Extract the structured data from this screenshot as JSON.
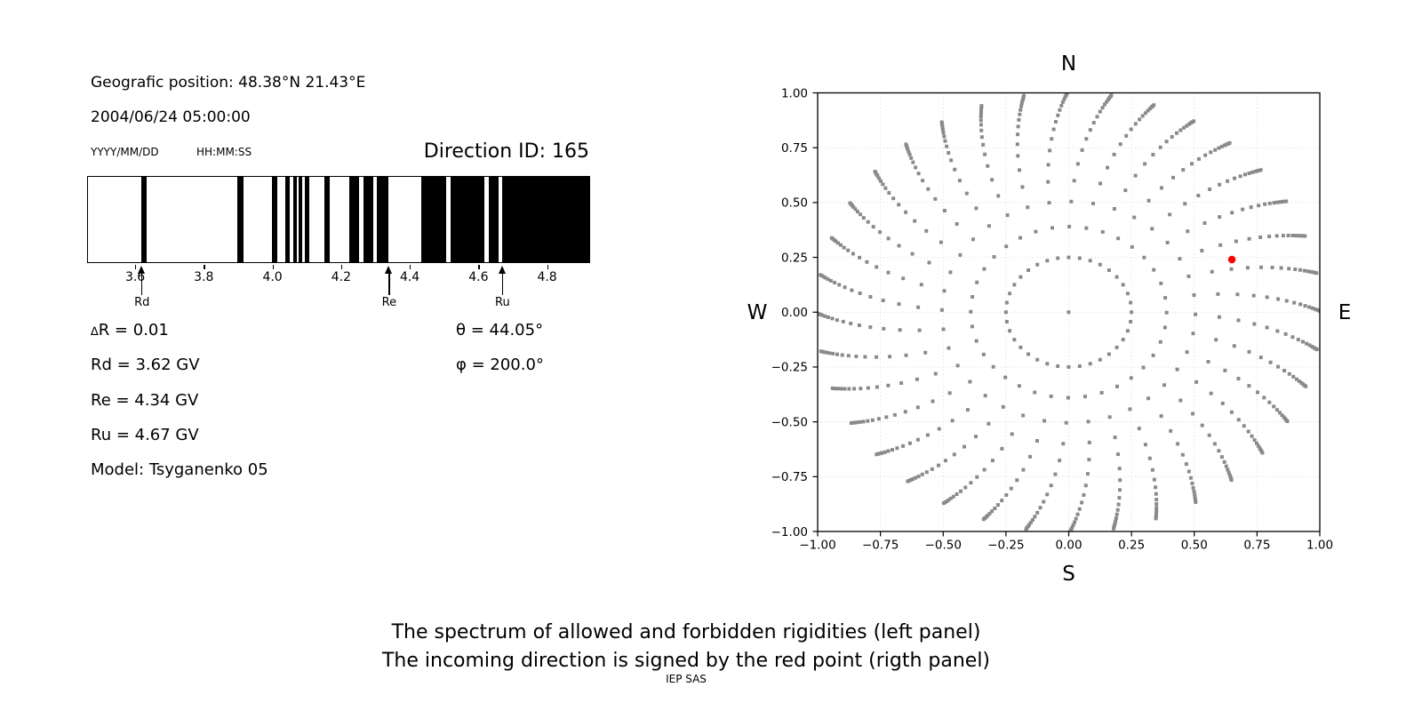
{
  "colors": {
    "bar": "#000000",
    "dot": "#8a8a8a",
    "red_point": "#ff0000",
    "grid": "#e3e3e3",
    "axis": "#000000",
    "text": "#000000"
  },
  "left_panel": {
    "geo_position": "Geografic position: 48.38°N 21.43°E",
    "datetime": "2004/06/24 05:00:00",
    "date_format_label": "YYYY/MM/DD",
    "time_format_label": "HH:MM:SS",
    "direction_id": "Direction ID: 165",
    "delta_symbol": "∆",
    "delta_rest": "R = 0.01",
    "rd": "Rd = 3.62 GV",
    "re": "Re = 4.34 GV",
    "ru": "Ru = 4.67 GV",
    "model": "Model: Tsyganenko 05",
    "theta": "θ = 44.05°",
    "phi": "φ = 200.0°"
  },
  "caption": {
    "line1": "The spectrum of allowed and forbidden rigidities (left panel)",
    "line2": "The incoming direction is signed by the red point (rigth panel)",
    "credit": "IEP SAS"
  },
  "chart_data": [
    {
      "type": "bar",
      "name": "rigidity-spectrum-barcode",
      "description": "1-D penumbra spectrum: black intervals are rigidity bands (GV), white is the complement",
      "xlim": [
        3.46,
        4.92
      ],
      "xticks": [
        3.6,
        3.8,
        4.0,
        4.2,
        4.4,
        4.6,
        4.8
      ],
      "xtick_labels": [
        "3.6",
        "3.8",
        "4.0",
        "4.2",
        "4.4",
        "4.6",
        "4.8"
      ],
      "black_intervals": [
        [
          3.616,
          3.632
        ],
        [
          3.895,
          3.912
        ],
        [
          3.995,
          4.012
        ],
        [
          4.034,
          4.048
        ],
        [
          4.057,
          4.069
        ],
        [
          4.073,
          4.085
        ],
        [
          4.092,
          4.104
        ],
        [
          4.148,
          4.163
        ],
        [
          4.222,
          4.249
        ],
        [
          4.262,
          4.292
        ],
        [
          4.3,
          4.334
        ],
        [
          4.43,
          4.503
        ],
        [
          4.516,
          4.615
        ],
        [
          4.628,
          4.655
        ],
        [
          4.667,
          4.92
        ]
      ],
      "arrows": [
        {
          "label": "Rd",
          "value": 3.62
        },
        {
          "label": "Re",
          "value": 4.34
        },
        {
          "label": "Ru",
          "value": 4.67
        }
      ]
    },
    {
      "type": "scatter",
      "name": "incoming-direction-map",
      "xlim": [
        -1,
        1
      ],
      "ylim": [
        -1,
        1
      ],
      "xticks": [
        -1,
        -0.75,
        -0.5,
        -0.25,
        0,
        0.25,
        0.5,
        0.75,
        1
      ],
      "yticks": [
        -1,
        -0.75,
        -0.5,
        -0.25,
        0,
        0.25,
        0.5,
        0.75,
        1
      ],
      "xtick_labels": [
        "−1.00",
        "−0.75",
        "−0.50",
        "−0.25",
        "0.00",
        "0.25",
        "0.50",
        "0.75",
        "1.00"
      ],
      "ytick_labels": [
        "−1.00",
        "−0.75",
        "−0.50",
        "−0.25",
        "0.00",
        "0.25",
        "0.50",
        "0.75",
        "1.00"
      ],
      "compass_labels": {
        "top": "N",
        "bottom": "S",
        "left": "W",
        "right": "E"
      },
      "grid": true,
      "spokes": {
        "count": 36,
        "angle_step_deg": 10,
        "radii": [
          0.25,
          0.39,
          0.505,
          0.6,
          0.677,
          0.741,
          0.793,
          0.836,
          0.87,
          0.899,
          0.923,
          0.942,
          0.958,
          0.971,
          0.982,
          0.99,
          0.997,
          1.003
        ],
        "twist_max_rad": 0.17
      },
      "center_point": [
        0,
        0
      ],
      "red_point": [
        0.65,
        0.24
      ],
      "dot_size_px": 4
    }
  ]
}
